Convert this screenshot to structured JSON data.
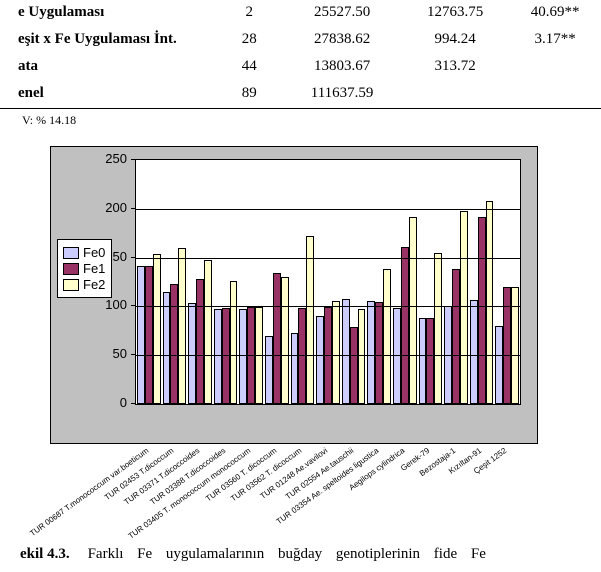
{
  "table": {
    "rows": [
      {
        "name": "e Uygulaması",
        "df": "2",
        "ss": "25527.50",
        "ms": "12763.75",
        "f": "40.69**"
      },
      {
        "name": "eşit x Fe Uygulaması İnt.",
        "df": "28",
        "ss": "27838.62",
        "ms": "994.24",
        "f": "3.17**"
      },
      {
        "name": "ata",
        "df": "44",
        "ss": "13803.67",
        "ms": "313.72",
        "f": ""
      },
      {
        "name": "enel",
        "df": "89",
        "ss": "111637.59",
        "ms": "",
        "f": ""
      }
    ],
    "cv_note": "V: % 14.18"
  },
  "chart": {
    "ymax": 250,
    "ytick_step": 50,
    "ylabels": [
      "0",
      "50",
      "100",
      "150",
      "200",
      "250"
    ],
    "tick_font_size": 13,
    "legend": {
      "items": [
        "Fe0",
        "Fe1",
        "Fe2"
      ]
    },
    "series_colors": [
      "#ccccff",
      "#993366",
      "#ffffcc"
    ],
    "background": "#c0c0c0",
    "plot_bg": "#ffffff",
    "grid_color": "#000000",
    "bar_border": "#000000",
    "font": "Arial",
    "categories": [
      {
        "label": "TUR 00687 T.monococcum var.boeticum",
        "v": [
          141,
          141,
          154
        ]
      },
      {
        "label": "TUR 02453 T.dicoccum",
        "v": [
          115,
          123,
          160
        ]
      },
      {
        "label": "TUR 03371 T.dicoccoides",
        "v": [
          104,
          128,
          148
        ]
      },
      {
        "label": "TUR 03388 T.dicoccoides",
        "v": [
          97,
          98,
          126
        ]
      },
      {
        "label": "TUR 03405 T. monococcum monococcum",
        "v": [
          97,
          99,
          99
        ]
      },
      {
        "label": "TUR 03560 T. dicoccum",
        "v": [
          70,
          134,
          130
        ]
      },
      {
        "label": "TUR 03562 T. dicoccum",
        "v": [
          73,
          98,
          172
        ]
      },
      {
        "label": "TUR 01248 Ae.vavilovi",
        "v": [
          90,
          99,
          106
        ]
      },
      {
        "label": "TUR 02554 Ae.tauschii",
        "v": [
          108,
          79,
          97
        ]
      },
      {
        "label": "TUR 03354 Ae. speltoides ligustica",
        "v": [
          106,
          105,
          138
        ]
      },
      {
        "label": "Aegilops cylindrica",
        "v": [
          98,
          161,
          192
        ]
      },
      {
        "label": "Gerek-79",
        "v": [
          88,
          88,
          155
        ]
      },
      {
        "label": "Bezostaja-1",
        "v": [
          100,
          138,
          198
        ]
      },
      {
        "label": "Kızıltan-91",
        "v": [
          107,
          192,
          208
        ]
      },
      {
        "label": "Çeşit 1252",
        "v": [
          80,
          120,
          120
        ]
      }
    ]
  },
  "caption": {
    "lead": "ekil  4.3.",
    "body": "Farklı  Fe  uygulamalarının  buğday  genotiplerinin  fide  Fe"
  }
}
